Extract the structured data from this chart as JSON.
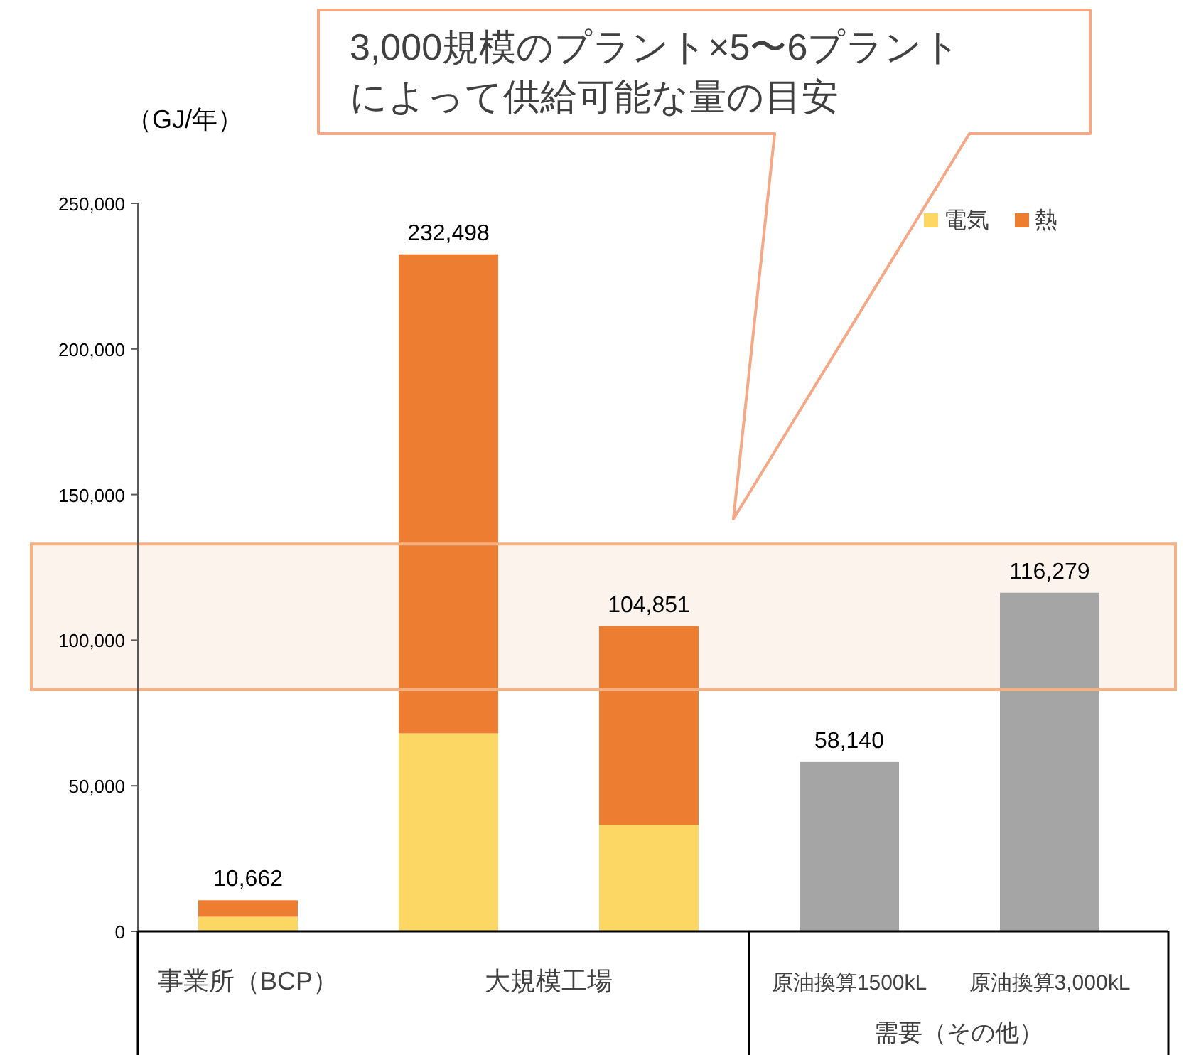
{
  "chart_data": {
    "type": "bar",
    "stacked": true,
    "ylabel": "（GJ/年）",
    "categories": [
      "事業所（BCP）",
      null,
      null,
      "原油換算1500kL",
      "原油換算3,000kL"
    ],
    "series": [
      {
        "name": "電気",
        "color": "#fdd764",
        "values": [
          5000,
          68000,
          36600,
          null,
          null
        ]
      },
      {
        "name": "熱",
        "color": "#ed7d31",
        "values": [
          5662,
          164498,
          68251,
          null,
          null
        ]
      },
      {
        "color": "#a5a5a5",
        "values": [
          null,
          null,
          null,
          58140,
          116279
        ]
      }
    ],
    "totals": [
      "10,662",
      "232,498",
      "104,851",
      "58,140",
      "116,279"
    ],
    "ylim": [
      0,
      250000
    ],
    "yticks": [
      {
        "value": 0,
        "label": "0"
      },
      {
        "value": 50000,
        "label": "50,000"
      },
      {
        "value": 100000,
        "label": "100,000"
      },
      {
        "value": 150000,
        "label": "150,000"
      },
      {
        "value": 200000,
        "label": "200,000"
      },
      {
        "value": 250000,
        "label": "250,000"
      }
    ],
    "bands": [
      {
        "axis": "y",
        "from": 83000,
        "to": 133000,
        "color": "#f4b183"
      }
    ],
    "annotations": [
      "3,000規模のプラント×5〜6プラント",
      "によって供給可能な量の目安",
      "大規模工場",
      "需要（その他）"
    ],
    "legend": "top right",
    "grid": false
  }
}
